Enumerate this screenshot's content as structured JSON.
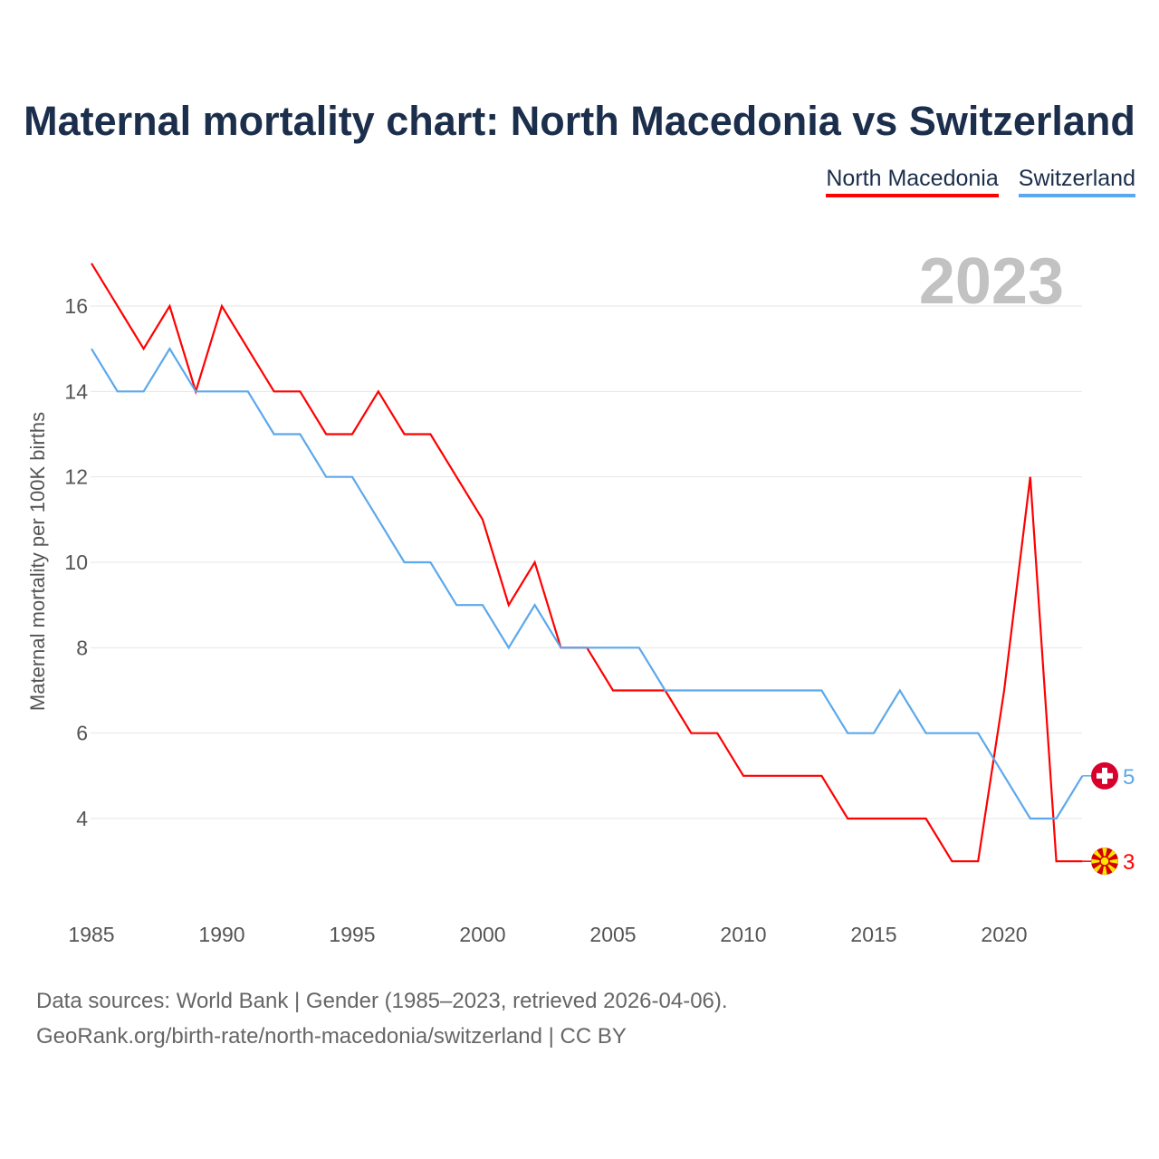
{
  "chart_data": {
    "type": "line",
    "title": "Maternal mortality chart: North Macedonia vs Switzerland",
    "ylabel": "Maternal mortality per 100K births",
    "xlabel": "",
    "year_label": "2023",
    "xlim": [
      1985,
      2023
    ],
    "ylim": [
      2,
      17.5
    ],
    "xticks": [
      1985,
      1990,
      1995,
      2000,
      2005,
      2010,
      2015,
      2020
    ],
    "yticks": [
      4,
      6,
      8,
      10,
      12,
      14,
      16
    ],
    "grid": true,
    "legend_position": "top-right",
    "x": [
      1985,
      1986,
      1987,
      1988,
      1989,
      1990,
      1991,
      1992,
      1993,
      1994,
      1995,
      1996,
      1997,
      1998,
      1999,
      2000,
      2001,
      2002,
      2003,
      2004,
      2005,
      2006,
      2007,
      2008,
      2009,
      2010,
      2011,
      2012,
      2013,
      2014,
      2015,
      2016,
      2017,
      2018,
      2019,
      2020,
      2021,
      2022,
      2023
    ],
    "series": [
      {
        "name": "North Macedonia",
        "color": "#ff0000",
        "end_label": "3",
        "values": [
          17,
          16,
          15,
          16,
          14,
          16,
          15,
          14,
          14,
          13,
          13,
          14,
          13,
          13,
          12,
          11,
          9,
          10,
          8,
          8,
          7,
          7,
          7,
          6,
          6,
          5,
          5,
          5,
          5,
          4,
          4,
          4,
          4,
          3,
          3,
          7,
          12,
          3,
          3
        ]
      },
      {
        "name": "Switzerland",
        "color": "#5ca8ec",
        "end_label": "5",
        "values": [
          15,
          14,
          14,
          15,
          14,
          14,
          14,
          13,
          13,
          12,
          12,
          11,
          10,
          10,
          9,
          9,
          8,
          9,
          8,
          8,
          8,
          8,
          7,
          7,
          7,
          7,
          7,
          7,
          7,
          6,
          6,
          7,
          6,
          6,
          6,
          5,
          4,
          4,
          5
        ]
      }
    ]
  },
  "source": {
    "line1": "Data sources: World Bank | Gender (1985–2023, retrieved 2026-04-06).",
    "line2": "GeoRank.org/birth-rate/north-macedonia/switzerland | CC BY"
  }
}
